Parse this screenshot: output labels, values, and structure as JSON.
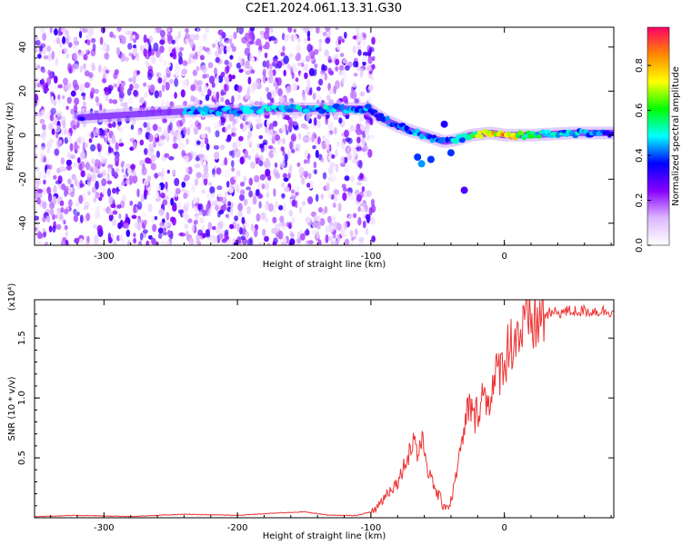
{
  "title": "C2E1.2024.061.13.31.G30",
  "chart_data": [
    {
      "type": "heatmap",
      "xlabel": "Height of straight line (km)",
      "ylabel": "Frequency (Hz)",
      "xlim": [
        -352,
        82
      ],
      "ylim": [
        -50,
        49
      ],
      "xticks": [
        -300,
        -200,
        -100,
        0
      ],
      "yticks": [
        -40,
        -20,
        0,
        20,
        40
      ],
      "xtick_labels": [
        "-300",
        "-200",
        "-100",
        "0"
      ],
      "ytick_labels": [
        "-40",
        "-20",
        "0",
        "20",
        "40"
      ],
      "colorbar": {
        "label": "Normalized spectral amplitude",
        "range": [
          0,
          0.97
        ],
        "ticks": [
          0,
          0.2,
          0.4,
          0.6,
          0.8
        ],
        "tick_labels": [
          "0.0",
          "0.2",
          "0.4",
          "0.6",
          "0.8"
        ],
        "colors": [
          "#ffffff",
          "#ddb7ff",
          "#8800ff",
          "#0000ff",
          "#00ffff",
          "#00ff00",
          "#ffff00",
          "#ff8800",
          "#ff0066"
        ]
      },
      "signal_track": {
        "x": [
          -318,
          -235,
          -200,
          -175,
          -150,
          -125,
          -102,
          -90,
          -75,
          -60,
          -45,
          -35,
          -25,
          -10,
          0,
          20,
          50,
          82
        ],
        "y": [
          8,
          11,
          11,
          12,
          12,
          12,
          12,
          7,
          3,
          0,
          -3,
          -2,
          0,
          1,
          0,
          0,
          1,
          1
        ],
        "amplitude": [
          0.35,
          0.45,
          0.45,
          0.5,
          0.5,
          0.5,
          0.45,
          0.4,
          0.45,
          0.5,
          0.45,
          0.5,
          0.6,
          0.85,
          0.9,
          0.6,
          0.5,
          0.45
        ]
      },
      "grid": false
    },
    {
      "type": "line",
      "xlabel": "Height of straight line (km)",
      "ylabel": "SNR (10 * v/v)",
      "scale_note": "(x10⁴)",
      "xlim": [
        -352,
        82
      ],
      "ylim": [
        0,
        1.82
      ],
      "xticks": [
        -300,
        -200,
        -100,
        0
      ],
      "yticks": [
        0.5,
        1.0,
        1.5
      ],
      "xtick_labels": [
        "-300",
        "-200",
        "-100",
        "0"
      ],
      "ytick_labels": [
        "0.5",
        "1.0",
        "1.5"
      ],
      "series": [
        {
          "color": "#ee3333",
          "x": [
            -352,
            -320,
            -280,
            -240,
            -200,
            -170,
            -150,
            -130,
            -110,
            -100,
            -95,
            -90,
            -85,
            -80,
            -75,
            -70,
            -67,
            -65,
            -63,
            -60,
            -57,
            -54,
            -50,
            -46,
            -42,
            -40,
            -38,
            -35,
            -32,
            -30,
            -28,
            -26,
            -25,
            -24,
            -22,
            -20,
            -17,
            -15,
            -13,
            -10,
            -8,
            -5,
            -2,
            0,
            3,
            6,
            10,
            15,
            20,
            25,
            30,
            40,
            50,
            60,
            70,
            82
          ],
          "y": [
            0.01,
            0.02,
            0.01,
            0.03,
            0.02,
            0.04,
            0.05,
            0.02,
            0.02,
            0.05,
            0.1,
            0.18,
            0.25,
            0.3,
            0.45,
            0.6,
            0.7,
            0.5,
            0.65,
            0.6,
            0.4,
            0.3,
            0.2,
            0.12,
            0.1,
            0.15,
            0.25,
            0.45,
            0.6,
            0.72,
            0.88,
            1.0,
            0.92,
            0.85,
            0.85,
            0.92,
            1.05,
            1.02,
            1.0,
            1.07,
            1.1,
            1.25,
            1.28,
            1.35,
            1.45,
            1.52,
            1.56,
            1.6,
            1.65,
            1.68,
            1.7,
            1.72,
            1.73,
            1.73,
            1.73,
            1.73
          ]
        }
      ],
      "grid": false
    }
  ]
}
